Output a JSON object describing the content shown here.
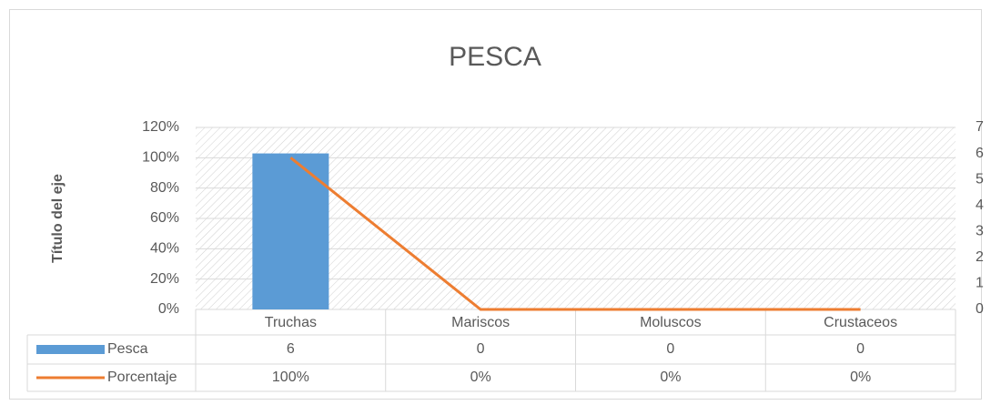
{
  "chart_data": {
    "type": "bar",
    "title": "PESCA",
    "y_label": "Título del eje",
    "categories": [
      "Truchas",
      "Mariscos",
      "Moluscos",
      "Crustaceos"
    ],
    "series": [
      {
        "name": "Pesca",
        "type": "bar",
        "color": "#5b9bd5",
        "axis": "y2",
        "values": [
          6,
          0,
          0,
          0
        ]
      },
      {
        "name": "Porcentaje",
        "type": "line",
        "color": "#ed7d31",
        "axis": "y",
        "values": [
          100,
          0,
          0,
          0
        ],
        "value_labels": [
          "100%",
          "0%",
          "0%",
          "0%"
        ]
      }
    ],
    "ylim": [
      0,
      120
    ],
    "yticks": [
      {
        "value": 0,
        "label": "0%"
      },
      {
        "value": 20,
        "label": "20%"
      },
      {
        "value": 40,
        "label": "40%"
      },
      {
        "value": 60,
        "label": "60%"
      },
      {
        "value": 80,
        "label": "80%"
      },
      {
        "value": 100,
        "label": "100%"
      },
      {
        "value": 120,
        "label": "120%"
      }
    ],
    "y2lim": [
      0,
      7
    ],
    "y2ticks": [
      0,
      1,
      2,
      3,
      4,
      5,
      6,
      7
    ],
    "grid": true,
    "data_table": true
  }
}
